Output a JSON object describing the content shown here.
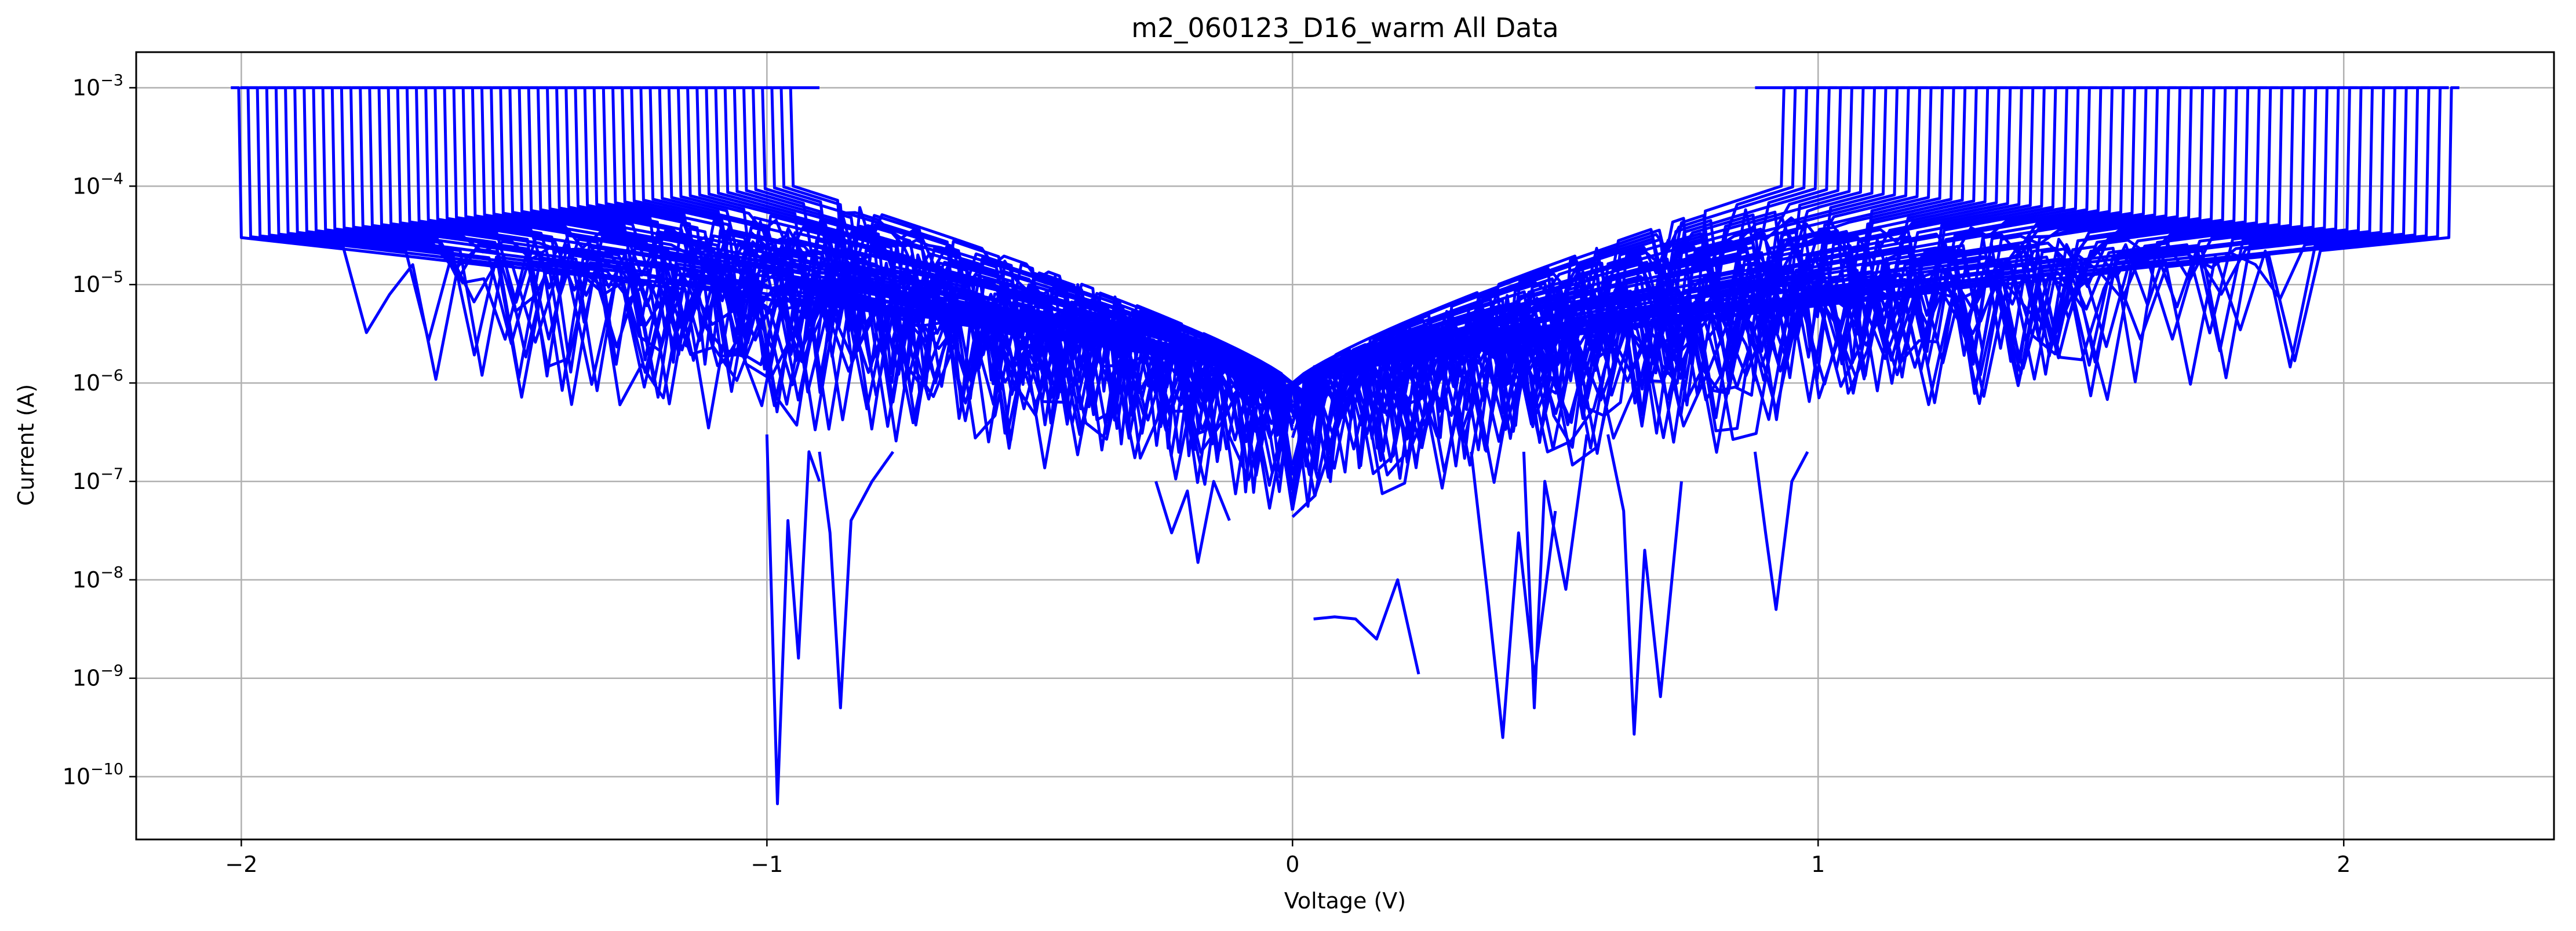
{
  "chart_data": {
    "type": "line",
    "title": "m2_060123_D16_warm All Data",
    "xlabel": "Voltage (V)",
    "ylabel": "Current (A)",
    "x_scale": "linear",
    "y_scale": "log",
    "xlim": [
      -2.2,
      2.4
    ],
    "ylim": [
      2.3e-11,
      0.0023
    ],
    "grid": true,
    "line_color": "#0000ff",
    "x_ticks": [
      {
        "value": -2,
        "label": "−2"
      },
      {
        "value": -1,
        "label": "−1"
      },
      {
        "value": 0,
        "label": "0"
      },
      {
        "value": 1,
        "label": "1"
      },
      {
        "value": 2,
        "label": "2"
      }
    ],
    "y_ticks": [
      {
        "value": 1e-10,
        "mant": "10",
        "exp": "−10"
      },
      {
        "value": 1e-09,
        "mant": "10",
        "exp": "−9"
      },
      {
        "value": 1e-08,
        "mant": "10",
        "exp": "−8"
      },
      {
        "value": 1e-07,
        "mant": "10",
        "exp": "−7"
      },
      {
        "value": 1e-06,
        "mant": "10",
        "exp": "−6"
      },
      {
        "value": 1e-05,
        "mant": "10",
        "exp": "−5"
      },
      {
        "value": 0.0001,
        "mant": "10",
        "exp": "−4"
      },
      {
        "value": 0.001,
        "mant": "10",
        "exp": "−3"
      }
    ],
    "sweep_family": {
      "curve_count": 60,
      "compliance_current": 0.001,
      "negative_branch_start_voltages": [
        -2.0,
        -0.95
      ],
      "positive_branch_end_voltages": [
        0.93,
        2.2
      ],
      "current_near_zero_voltage": 1e-06,
      "current_at_threshold_min": 3e-05,
      "current_at_threshold_max": 0.0001,
      "noise_floor_min": 5e-11
    },
    "series": [
      {
        "x": [
          -1.0,
          -0.98,
          -0.96,
          -0.94,
          -0.92,
          -0.9
        ],
        "y": [
          3e-07,
          5.3e-11,
          4e-08,
          1.6e-09,
          2e-07,
          1e-07
        ]
      },
      {
        "x": [
          -0.9,
          -0.88,
          -0.86,
          -0.84,
          -0.8,
          -0.76
        ],
        "y": [
          2e-07,
          3e-08,
          5e-10,
          4e-08,
          1e-07,
          2e-07
        ]
      },
      {
        "x": [
          0.34,
          0.37,
          0.4,
          0.43,
          0.46,
          0.5
        ],
        "y": [
          2e-07,
          8e-09,
          2.5e-10,
          3e-08,
          1e-09,
          5e-08
        ]
      },
      {
        "x": [
          0.44,
          0.46,
          0.48,
          0.52,
          0.56
        ],
        "y": [
          2e-07,
          5e-10,
          1e-07,
          8e-09,
          3e-07
        ]
      },
      {
        "x": [
          0.6,
          0.63,
          0.65,
          0.67,
          0.7,
          0.74
        ],
        "y": [
          3e-07,
          5e-08,
          2.7e-10,
          2e-08,
          6.5e-10,
          1e-07
        ]
      },
      {
        "x": [
          0.88,
          0.9,
          0.92,
          0.95,
          0.98
        ],
        "y": [
          2e-07,
          3e-08,
          5e-09,
          1e-07,
          2e-07
        ]
      },
      {
        "x": [
          -0.26,
          -0.23,
          -0.2,
          -0.18,
          -0.15,
          -0.12
        ],
        "y": [
          1e-07,
          3e-08,
          8e-08,
          1.5e-08,
          1e-07,
          4e-08
        ]
      },
      {
        "x": [
          0.04,
          0.08,
          0.12,
          0.16,
          0.2,
          0.24
        ],
        "y": [
          4e-09,
          4.2e-09,
          4e-09,
          2.5e-09,
          1e-08,
          1.1e-09
        ]
      }
    ]
  }
}
